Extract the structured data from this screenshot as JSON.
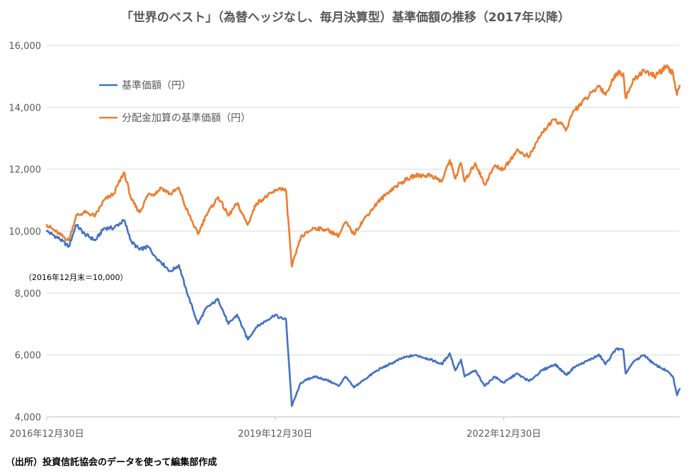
{
  "chart_data": {
    "type": "line",
    "title": "「世界のベスト」（為替ヘッジなし、毎月決算型）基準価額の推移（2017年以降）",
    "xlabel": "",
    "ylabel": "",
    "ylim": [
      4000,
      16000
    ],
    "yticks": [
      4000,
      6000,
      8000,
      10000,
      12000,
      14000,
      16000
    ],
    "ytick_labels": [
      "4,000",
      "6,000",
      "8,000",
      "10,000",
      "12,000",
      "14,000",
      "16,000"
    ],
    "xlim": [
      "2016-12-30",
      "2025-04-21"
    ],
    "xticks": [
      "2016-12-30",
      "2019-12-30",
      "2022-12-30"
    ],
    "xtick_labels": [
      "2016年12月30日",
      "2019年12月30日",
      "2022年12月30日"
    ],
    "grid": "horizontal",
    "legend": "top-left",
    "annotation": "（2016年12月末＝10,000）",
    "colors": {
      "base": "#4472C4",
      "adjusted": "#ED7D31",
      "grid": "#D9D9D9",
      "text": "#595959"
    },
    "series": [
      {
        "name": "基準価額（円）",
        "color": "#4472C4",
        "points": [
          [
            "2016-12-30",
            10000
          ],
          [
            "2017-03-01",
            9750
          ],
          [
            "2017-04-15",
            9500
          ],
          [
            "2017-05-20",
            10200
          ],
          [
            "2017-07-01",
            9900
          ],
          [
            "2017-08-20",
            9700
          ],
          [
            "2017-10-01",
            10100
          ],
          [
            "2017-11-15",
            10100
          ],
          [
            "2018-01-05",
            10350
          ],
          [
            "2018-02-10",
            9650
          ],
          [
            "2018-03-20",
            9400
          ],
          [
            "2018-05-01",
            9500
          ],
          [
            "2018-06-01",
            9200
          ],
          [
            "2018-07-01",
            9000
          ],
          [
            "2018-08-15",
            8700
          ],
          [
            "2018-09-25",
            8900
          ],
          [
            "2018-10-25",
            8200
          ],
          [
            "2018-12-25",
            7000
          ],
          [
            "2019-02-01",
            7500
          ],
          [
            "2019-04-01",
            7800
          ],
          [
            "2019-05-20",
            7000
          ],
          [
            "2019-07-01",
            7300
          ],
          [
            "2019-08-20",
            6500
          ],
          [
            "2019-10-01",
            6900
          ],
          [
            "2019-12-30",
            7300
          ],
          [
            "2020-01-20",
            7200
          ],
          [
            "2020-02-20",
            7150
          ],
          [
            "2020-03-19",
            4350
          ],
          [
            "2020-05-01",
            5100
          ],
          [
            "2020-07-01",
            5300
          ],
          [
            "2020-09-01",
            5200
          ],
          [
            "2020-10-30",
            5000
          ],
          [
            "2020-12-01",
            5300
          ],
          [
            "2021-01-10",
            4950
          ],
          [
            "2021-03-01",
            5200
          ],
          [
            "2021-05-01",
            5500
          ],
          [
            "2021-07-01",
            5700
          ],
          [
            "2021-09-01",
            5900
          ],
          [
            "2021-11-01",
            6000
          ],
          [
            "2022-01-15",
            5850
          ],
          [
            "2022-03-08",
            5700
          ],
          [
            "2022-04-15",
            6050
          ],
          [
            "2022-05-12",
            5500
          ],
          [
            "2022-06-08",
            5850
          ],
          [
            "2022-06-25",
            5300
          ],
          [
            "2022-08-15",
            5500
          ],
          [
            "2022-09-30",
            5000
          ],
          [
            "2022-11-15",
            5300
          ],
          [
            "2022-12-30",
            5100
          ],
          [
            "2023-03-01",
            5400
          ],
          [
            "2023-05-01",
            5150
          ],
          [
            "2023-07-01",
            5500
          ],
          [
            "2023-09-01",
            5700
          ],
          [
            "2023-10-27",
            5350
          ],
          [
            "2023-12-01",
            5600
          ],
          [
            "2024-02-01",
            5800
          ],
          [
            "2024-04-01",
            6000
          ],
          [
            "2024-05-01",
            5700
          ],
          [
            "2024-06-20",
            6200
          ],
          [
            "2024-07-25",
            6150
          ],
          [
            "2024-08-05",
            5400
          ],
          [
            "2024-09-15",
            5800
          ],
          [
            "2024-11-01",
            6000
          ],
          [
            "2024-12-20",
            5700
          ],
          [
            "2025-02-15",
            5500
          ],
          [
            "2025-03-20",
            5300
          ],
          [
            "2025-04-08",
            4700
          ],
          [
            "2025-04-21",
            4900
          ]
        ]
      },
      {
        "name": "分配金加算の基準価額（円）",
        "color": "#ED7D31",
        "points": [
          [
            "2016-12-30",
            10200
          ],
          [
            "2017-03-01",
            9900
          ],
          [
            "2017-04-15",
            9700
          ],
          [
            "2017-05-20",
            10500
          ],
          [
            "2017-07-01",
            10600
          ],
          [
            "2017-08-20",
            10500
          ],
          [
            "2017-10-01",
            11000
          ],
          [
            "2017-11-15",
            11200
          ],
          [
            "2018-01-05",
            11900
          ],
          [
            "2018-02-10",
            11000
          ],
          [
            "2018-03-20",
            10600
          ],
          [
            "2018-05-01",
            11200
          ],
          [
            "2018-06-01",
            11200
          ],
          [
            "2018-07-01",
            11400
          ],
          [
            "2018-08-15",
            11200
          ],
          [
            "2018-09-25",
            11400
          ],
          [
            "2018-10-25",
            10800
          ],
          [
            "2018-12-25",
            9900
          ],
          [
            "2019-02-01",
            10500
          ],
          [
            "2019-04-01",
            11100
          ],
          [
            "2019-05-20",
            10500
          ],
          [
            "2019-07-01",
            10900
          ],
          [
            "2019-08-20",
            10200
          ],
          [
            "2019-10-01",
            10900
          ],
          [
            "2019-12-30",
            11300
          ],
          [
            "2020-01-20",
            11400
          ],
          [
            "2020-02-20",
            11300
          ],
          [
            "2020-03-19",
            8850
          ],
          [
            "2020-05-01",
            9800
          ],
          [
            "2020-07-01",
            10100
          ],
          [
            "2020-09-01",
            10050
          ],
          [
            "2020-10-30",
            9850
          ],
          [
            "2020-12-01",
            10300
          ],
          [
            "2021-01-10",
            9900
          ],
          [
            "2021-03-01",
            10400
          ],
          [
            "2021-05-01",
            10900
          ],
          [
            "2021-07-01",
            11300
          ],
          [
            "2021-09-01",
            11600
          ],
          [
            "2021-11-01",
            11800
          ],
          [
            "2022-01-15",
            11800
          ],
          [
            "2022-03-08",
            11600
          ],
          [
            "2022-04-15",
            12300
          ],
          [
            "2022-05-12",
            11700
          ],
          [
            "2022-06-08",
            12200
          ],
          [
            "2022-06-25",
            11600
          ],
          [
            "2022-08-15",
            12200
          ],
          [
            "2022-09-30",
            11500
          ],
          [
            "2022-11-15",
            12100
          ],
          [
            "2022-12-30",
            12000
          ],
          [
            "2023-03-01",
            12600
          ],
          [
            "2023-05-01",
            12400
          ],
          [
            "2023-07-01",
            13200
          ],
          [
            "2023-09-01",
            13600
          ],
          [
            "2023-10-27",
            13300
          ],
          [
            "2023-12-01",
            13900
          ],
          [
            "2024-02-01",
            14300
          ],
          [
            "2024-04-01",
            14700
          ],
          [
            "2024-05-01",
            14400
          ],
          [
            "2024-06-20",
            15100
          ],
          [
            "2024-07-25",
            15100
          ],
          [
            "2024-08-05",
            14300
          ],
          [
            "2024-09-15",
            14900
          ],
          [
            "2024-11-01",
            15200
          ],
          [
            "2024-12-20",
            15000
          ],
          [
            "2025-02-15",
            15300
          ],
          [
            "2025-03-20",
            15100
          ],
          [
            "2025-04-08",
            14400
          ],
          [
            "2025-04-21",
            14700
          ]
        ]
      }
    ]
  },
  "source_note": "（出所）投資信託協会のデータを使って編集部作成"
}
